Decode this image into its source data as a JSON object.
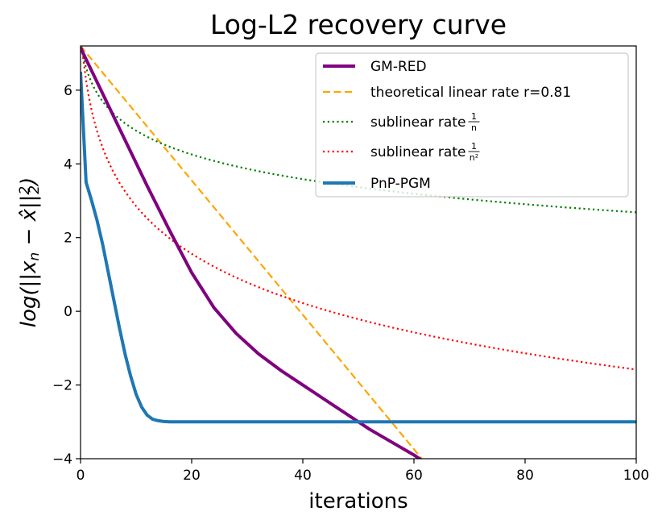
{
  "chart_data": {
    "type": "line",
    "title": "Log-L2 recovery curve",
    "xlabel": "iterations",
    "ylabel": "log(||x_n − x̂||²₂)",
    "xlim": [
      0,
      100
    ],
    "ylim": [
      -4,
      7.2
    ],
    "xticks": [
      0,
      20,
      40,
      60,
      80,
      100
    ],
    "xtick_labels": [
      "0",
      "20",
      "40",
      "60",
      "80",
      "100"
    ],
    "yticks": [
      -4,
      -2,
      0,
      2,
      4,
      6
    ],
    "ytick_labels": [
      "−4",
      "−2",
      "0",
      "2",
      "4",
      "6"
    ],
    "grid": false,
    "legend_position": "top-right",
    "series": [
      {
        "name": "GM-RED",
        "legend_label": "GM-RED",
        "color": "#800080",
        "style": "solid",
        "x": [
          0,
          4,
          8,
          12,
          16,
          20,
          24,
          28,
          32,
          36,
          40,
          44,
          48,
          52,
          56,
          60,
          62
        ],
        "y": [
          7.15,
          5.9,
          4.65,
          3.4,
          2.2,
          1.05,
          0.1,
          -0.6,
          -1.15,
          -1.6,
          -2.0,
          -2.4,
          -2.8,
          -3.2,
          -3.55,
          -3.9,
          -4.1
        ]
      },
      {
        "name": "theoretical linear rate",
        "legend_label": "theoretical linear rate r=0.81",
        "color": "#FFA500",
        "style": "dashed",
        "x": [
          0,
          62.5
        ],
        "y": [
          7.2,
          -4.2
        ]
      },
      {
        "name": "sublinear rate 1/n",
        "legend_label": "sublinear rate",
        "frac_num": "1",
        "frac_den": "n",
        "color": "#008000",
        "style": "dotted",
        "formula": "c - ln(x+1)",
        "c": 7.3
      },
      {
        "name": "sublinear rate 1/n²",
        "legend_label": "sublinear rate",
        "frac_num": "1",
        "frac_den": "n²",
        "color": "#FF0000",
        "style": "dotted",
        "formula": "c - 2 ln(x+1)",
        "c": 7.65
      },
      {
        "name": "PnP-PGM",
        "legend_label": "PnP-PGM",
        "color": "#1F77B4",
        "style": "solid",
        "x": [
          0,
          1,
          2,
          3,
          4,
          5,
          6,
          7,
          8,
          9,
          10,
          11,
          12,
          13,
          14,
          15,
          16,
          18,
          20,
          30,
          40,
          50,
          60,
          70,
          80,
          90,
          100
        ],
        "y": [
          6.5,
          3.5,
          3.0,
          2.45,
          1.8,
          1.05,
          0.3,
          -0.45,
          -1.15,
          -1.75,
          -2.25,
          -2.6,
          -2.82,
          -2.93,
          -2.97,
          -2.99,
          -3.0,
          -3.0,
          -3.0,
          -3.0,
          -3.0,
          -3.0,
          -3.0,
          -3.0,
          -3.0,
          -3.0,
          -3.0
        ]
      }
    ]
  }
}
